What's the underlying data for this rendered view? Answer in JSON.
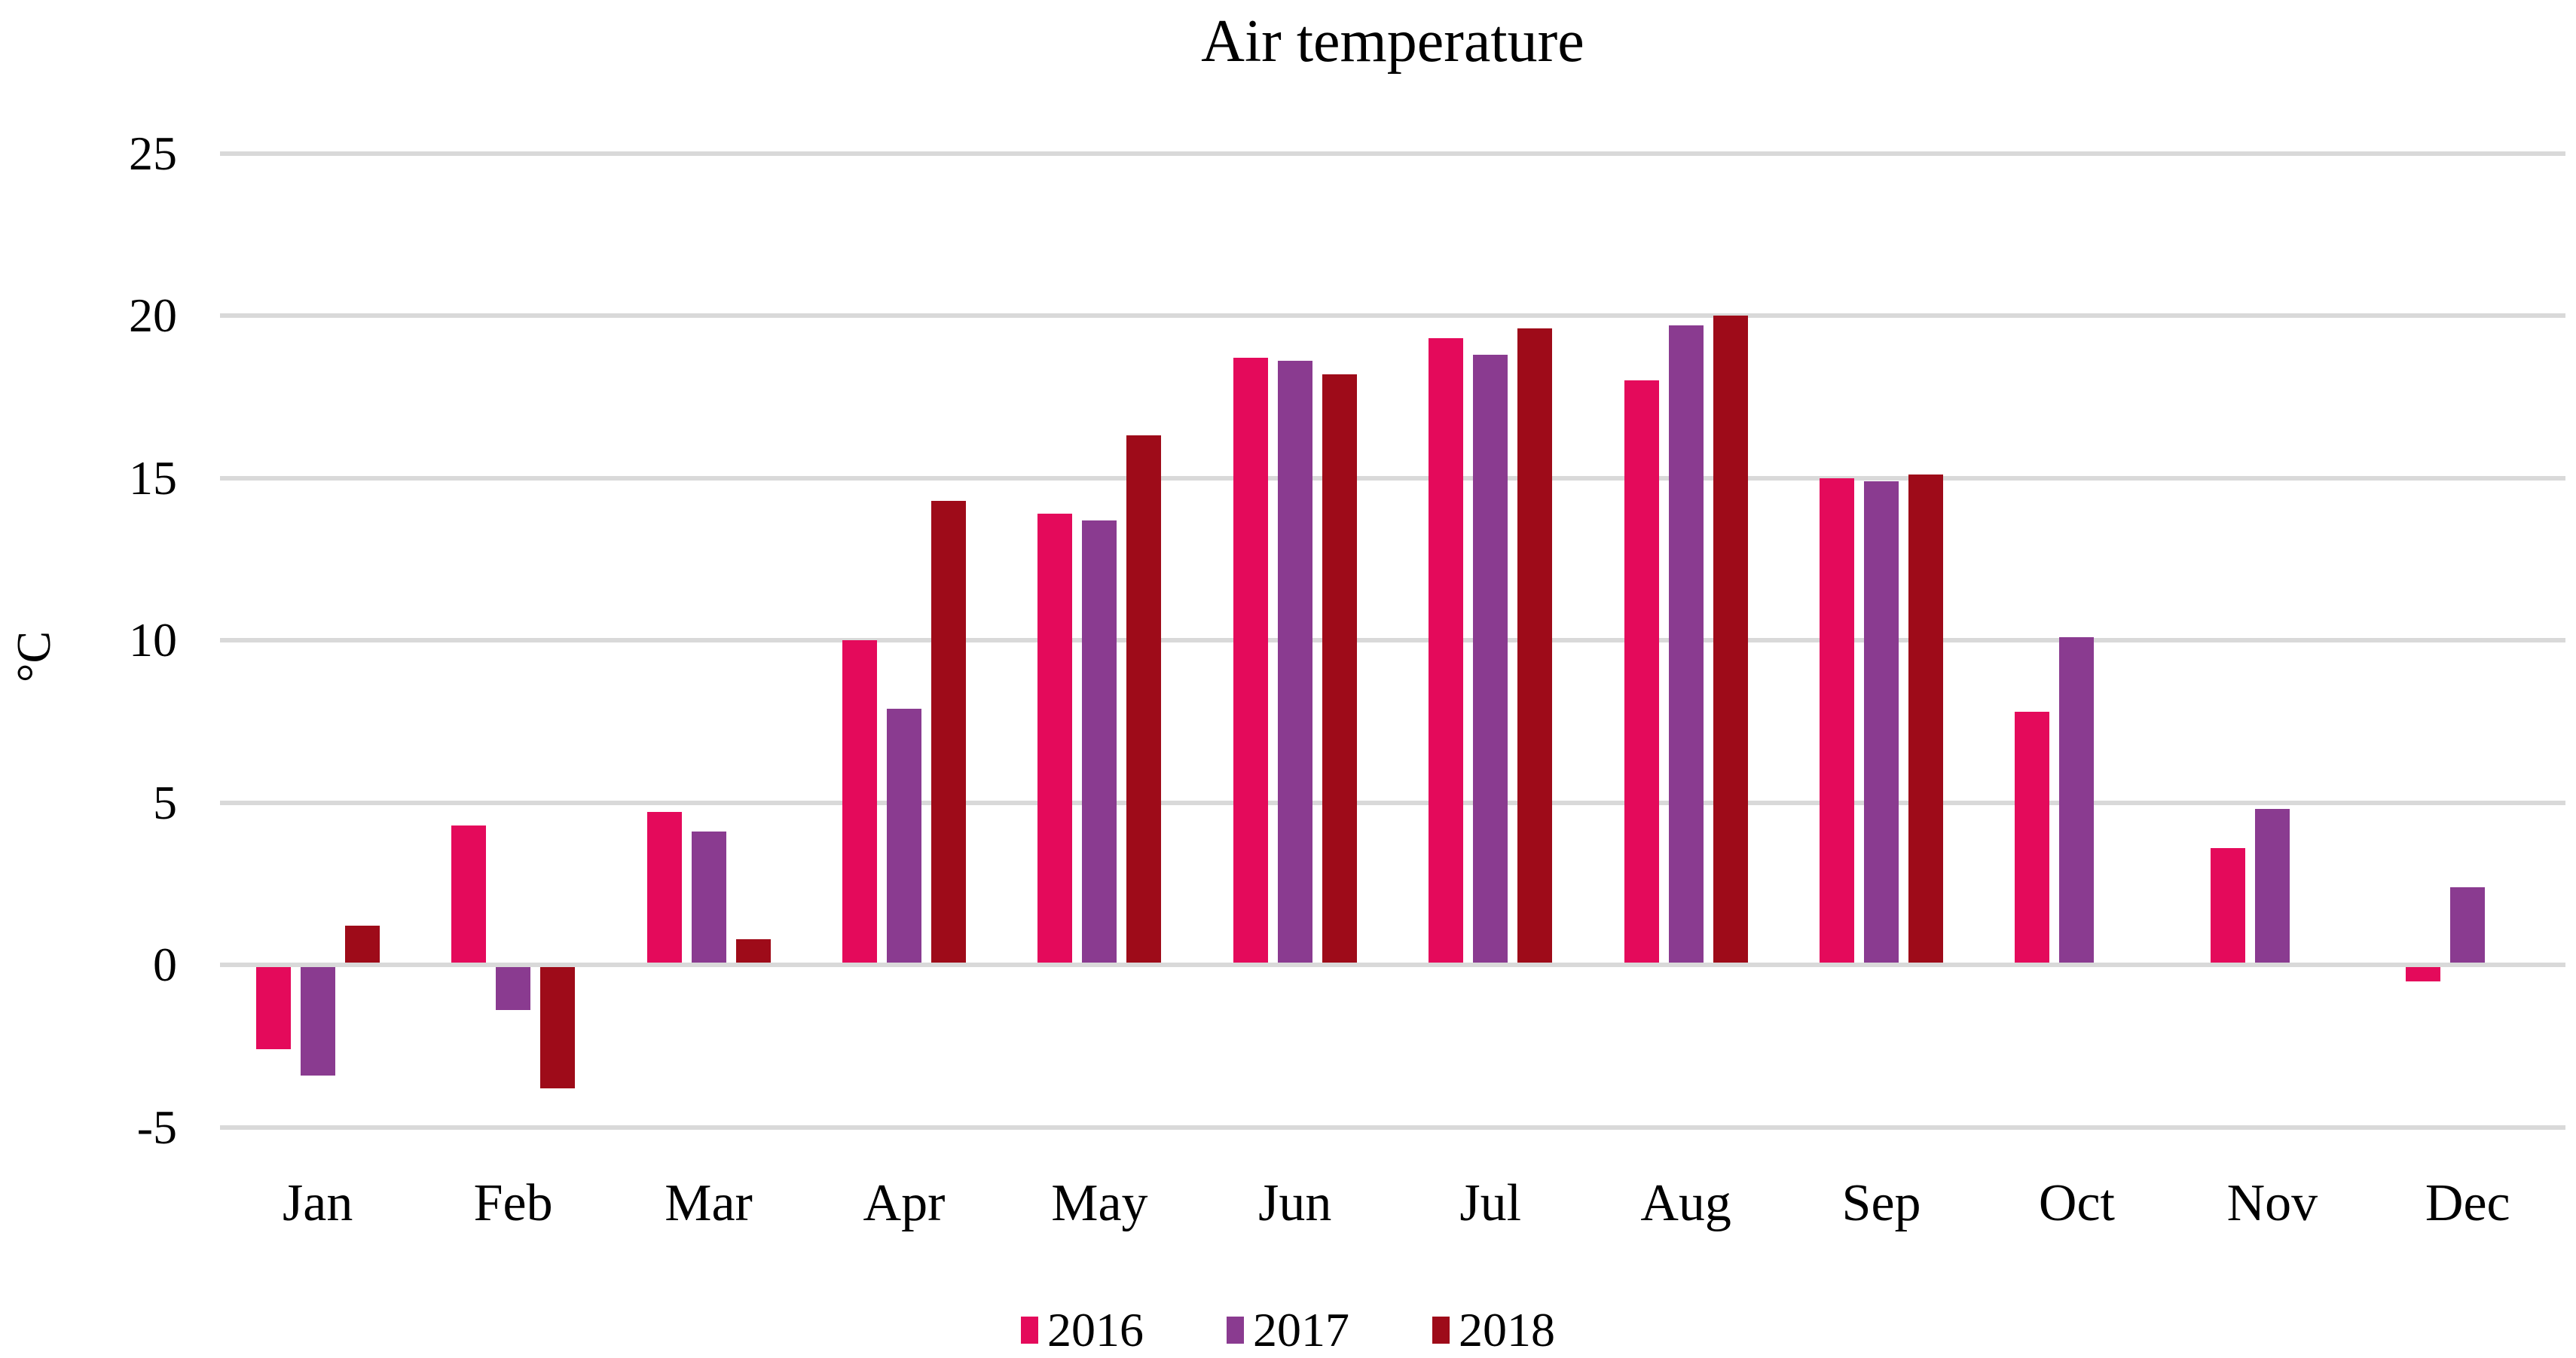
{
  "chart_data": {
    "type": "bar",
    "title": "Air temperature",
    "ylabel": "°C",
    "categories": [
      "Jan",
      "Feb",
      "Mar",
      "Apr",
      "May",
      "Jun",
      "Jul",
      "Aug",
      "Sep",
      "Oct",
      "Nov",
      "Dec"
    ],
    "series": [
      {
        "name": "2016",
        "color": "#E40A5B",
        "values": [
          -2.6,
          4.3,
          4.7,
          10.0,
          13.9,
          18.7,
          19.3,
          18.0,
          15.0,
          7.8,
          3.6,
          -0.5
        ]
      },
      {
        "name": "2017",
        "color": "#8A3B90",
        "values": [
          -3.4,
          -1.4,
          4.1,
          7.9,
          13.7,
          18.6,
          18.8,
          19.7,
          14.9,
          10.1,
          4.8,
          2.4
        ]
      },
      {
        "name": "2018",
        "color": "#9E0B19",
        "values": [
          1.2,
          -3.8,
          0.8,
          14.3,
          16.3,
          18.2,
          19.6,
          20.0,
          15.1,
          null,
          null,
          null
        ]
      }
    ],
    "ylim": [
      -5,
      25
    ],
    "yticks": [
      25,
      20,
      15,
      10,
      5,
      0,
      -5
    ],
    "grid": "horizontal",
    "gridline_color": "#D9D9D9",
    "background_color": "#FFFFFF",
    "text_color": "#000000",
    "legend_position": "bottom"
  }
}
